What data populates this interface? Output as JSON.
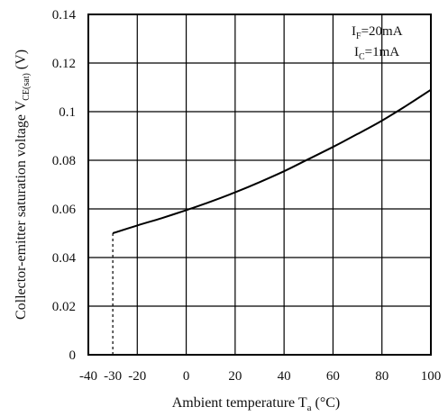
{
  "chart_data": {
    "type": "line",
    "title": "",
    "xlabel": {
      "main": "Ambient temperature T",
      "sub": "a",
      "unit": " (°C)"
    },
    "ylabel": {
      "main": "Collector-emitter saturation voltage V",
      "sub": "CE(sat)",
      "unit": "  (V)"
    },
    "xlim": [
      -40,
      100
    ],
    "ylim": [
      0,
      0.14
    ],
    "x_ticks": [
      {
        "value": -40,
        "label": "-40"
      },
      {
        "value": -30,
        "label": "-30"
      },
      {
        "value": -20,
        "label": "-20"
      },
      {
        "value": 0,
        "label": "0"
      },
      {
        "value": 20,
        "label": "20"
      },
      {
        "value": 40,
        "label": "40"
      },
      {
        "value": 60,
        "label": "60"
      },
      {
        "value": 80,
        "label": "80"
      },
      {
        "value": 100,
        "label": "100"
      }
    ],
    "y_ticks": [
      {
        "value": 0,
        "label": "0"
      },
      {
        "value": 0.02,
        "label": "0.02"
      },
      {
        "value": 0.04,
        "label": "0.04"
      },
      {
        "value": 0.06,
        "label": "0.06"
      },
      {
        "value": 0.08,
        "label": "0.08"
      },
      {
        "value": 0.1,
        "label": "0.1"
      },
      {
        "value": 0.12,
        "label": "0.12"
      },
      {
        "value": 0.14,
        "label": "0.14"
      }
    ],
    "x_grid": [
      -20,
      0,
      20,
      40,
      60,
      80
    ],
    "y_grid": [
      0.02,
      0.04,
      0.06,
      0.08,
      0.1,
      0.12
    ],
    "grid": true,
    "series": [
      {
        "x": [
          -30,
          -20,
          -10,
          0,
          10,
          20,
          30,
          40,
          50,
          60,
          70,
          80,
          90,
          100
        ],
        "y": [
          0.05,
          0.0532,
          0.0562,
          0.0595,
          0.063,
          0.0668,
          0.071,
          0.0755,
          0.0805,
          0.0855,
          0.0908,
          0.0963,
          0.1025,
          0.109
        ]
      }
    ],
    "dashed_marker": {
      "x": -30,
      "y_from": 0,
      "y_to": 0.05
    },
    "annotations": [
      {
        "main": "I",
        "sub": "F",
        "rest": "=20mA",
        "position": "top-right"
      },
      {
        "main": "I",
        "sub": "C",
        "rest": "=1mA",
        "position": "top-right"
      }
    ]
  }
}
